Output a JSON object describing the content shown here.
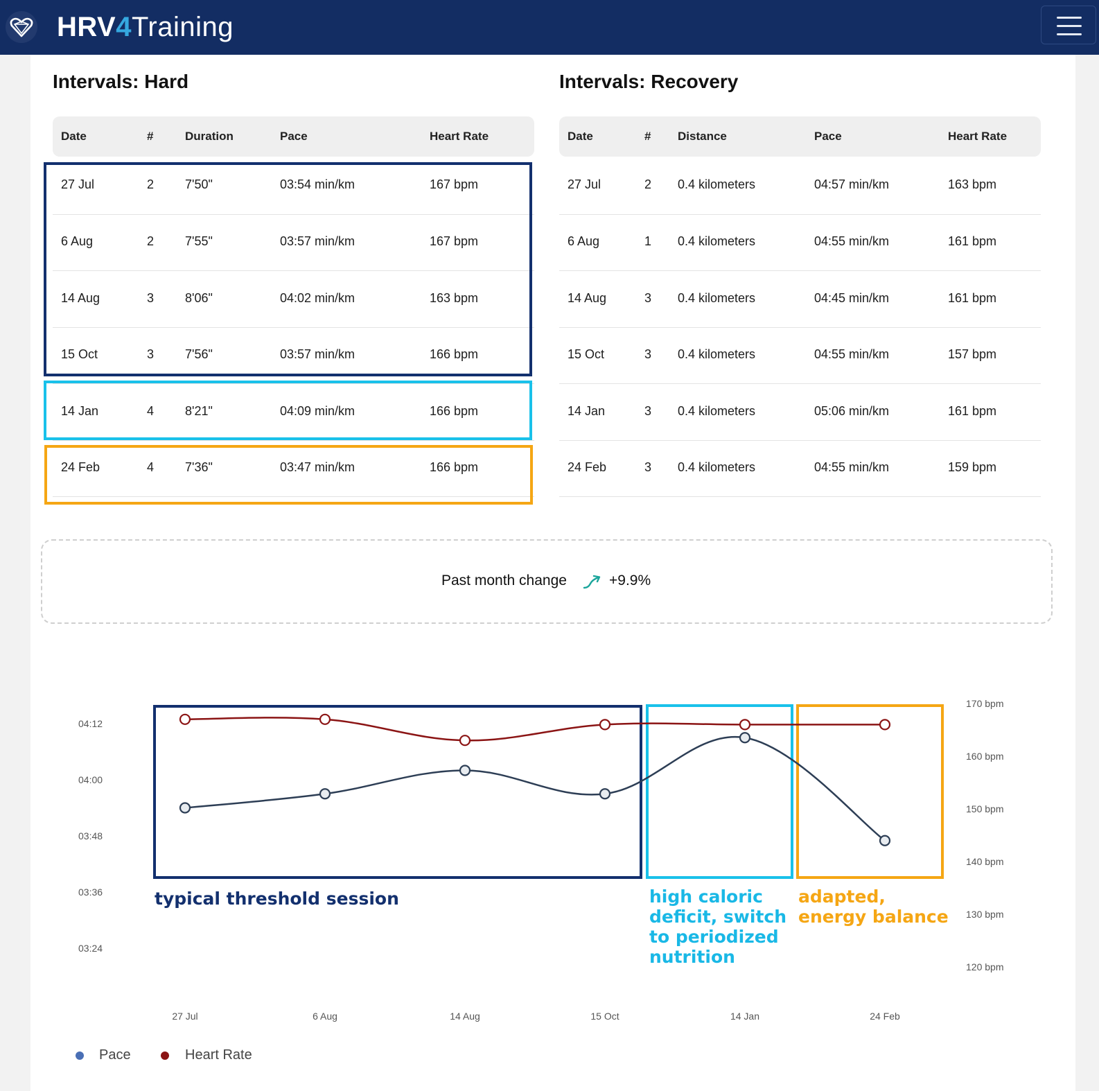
{
  "app": {
    "brand_part1": "HRV",
    "brand_part2": "4",
    "brand_part3": "Training",
    "menu_icon": "hamburger-icon",
    "logo_icon": "heart-logo-icon"
  },
  "colors": {
    "navbar": "#132d63",
    "navy_highlight": "#13306e",
    "cyan_highlight": "#19c1ea",
    "orange_highlight": "#f5a614",
    "pace_line": "#2d3e55",
    "heart_rate_line": "#8b1414",
    "trend_up": "#1aa59b"
  },
  "hard": {
    "title": "Intervals: Hard",
    "headers": [
      "Date",
      "#",
      "Duration",
      "Pace",
      "Heart Rate"
    ],
    "rows": [
      [
        "27 Jul",
        "2",
        "7'50\"",
        "03:54 min/km",
        "167 bpm"
      ],
      [
        "6 Aug",
        "2",
        "7'55\"",
        "03:57 min/km",
        "167 bpm"
      ],
      [
        "14 Aug",
        "3",
        "8'06\"",
        "04:02 min/km",
        "163 bpm"
      ],
      [
        "15 Oct",
        "3",
        "7'56\"",
        "03:57 min/km",
        "166 bpm"
      ],
      [
        "14 Jan",
        "4",
        "8'21\"",
        "04:09 min/km",
        "166 bpm"
      ],
      [
        "24 Feb",
        "4",
        "7'36\"",
        "03:47 min/km",
        "166 bpm"
      ]
    ]
  },
  "recovery": {
    "title": "Intervals: Recovery",
    "headers": [
      "Date",
      "#",
      "Distance",
      "Pace",
      "Heart Rate"
    ],
    "rows": [
      [
        "27 Jul",
        "2",
        "0.4 kilometers",
        "04:57 min/km",
        "163 bpm"
      ],
      [
        "6 Aug",
        "1",
        "0.4 kilometers",
        "04:55 min/km",
        "161 bpm"
      ],
      [
        "14 Aug",
        "3",
        "0.4 kilometers",
        "04:45 min/km",
        "161 bpm"
      ],
      [
        "15 Oct",
        "3",
        "0.4 kilometers",
        "04:55 min/km",
        "157 bpm"
      ],
      [
        "14 Jan",
        "3",
        "0.4 kilometers",
        "05:06 min/km",
        "161 bpm"
      ],
      [
        "24 Feb",
        "3",
        "0.4 kilometers",
        "04:55 min/km",
        "159 bpm"
      ]
    ]
  },
  "summary": {
    "label": "Past month change",
    "icon": "trend-up-icon",
    "value": "+9.9%"
  },
  "annotations": {
    "typical": "typical threshold session",
    "deficit": "high caloric deficit, switch to periodized nutrition",
    "adapted": "adapted, energy balance"
  },
  "chart_data": {
    "type": "line",
    "x": [
      "27 Jul",
      "6 Aug",
      "14 Aug",
      "15 Oct",
      "14 Jan",
      "24 Feb"
    ],
    "series": [
      {
        "name": "Pace",
        "axis": "left",
        "values": [
          "03:54",
          "03:57",
          "04:02",
          "03:57",
          "04:09",
          "03:47"
        ],
        "values_seconds": [
          234,
          237,
          242,
          237,
          249,
          227
        ]
      },
      {
        "name": "Heart Rate",
        "axis": "right",
        "values": [
          167,
          167,
          163,
          166,
          166,
          166
        ]
      }
    ],
    "y_left": {
      "ticks": [
        "04:12",
        "04:00",
        "03:48",
        "03:36",
        "03:24"
      ],
      "range_seconds": [
        204,
        252
      ]
    },
    "y_right": {
      "ticks": [
        "170 bpm",
        "160 bpm",
        "150 bpm",
        "140 bpm",
        "130 bpm",
        "120 bpm"
      ],
      "range": [
        120,
        170
      ]
    },
    "legend": {
      "placement": "bottom-left",
      "entries": [
        "Pace",
        "Heart Rate"
      ],
      "pace_dot": "#4a6fb5",
      "hr_dot": "#8b1414"
    },
    "grid": false
  }
}
